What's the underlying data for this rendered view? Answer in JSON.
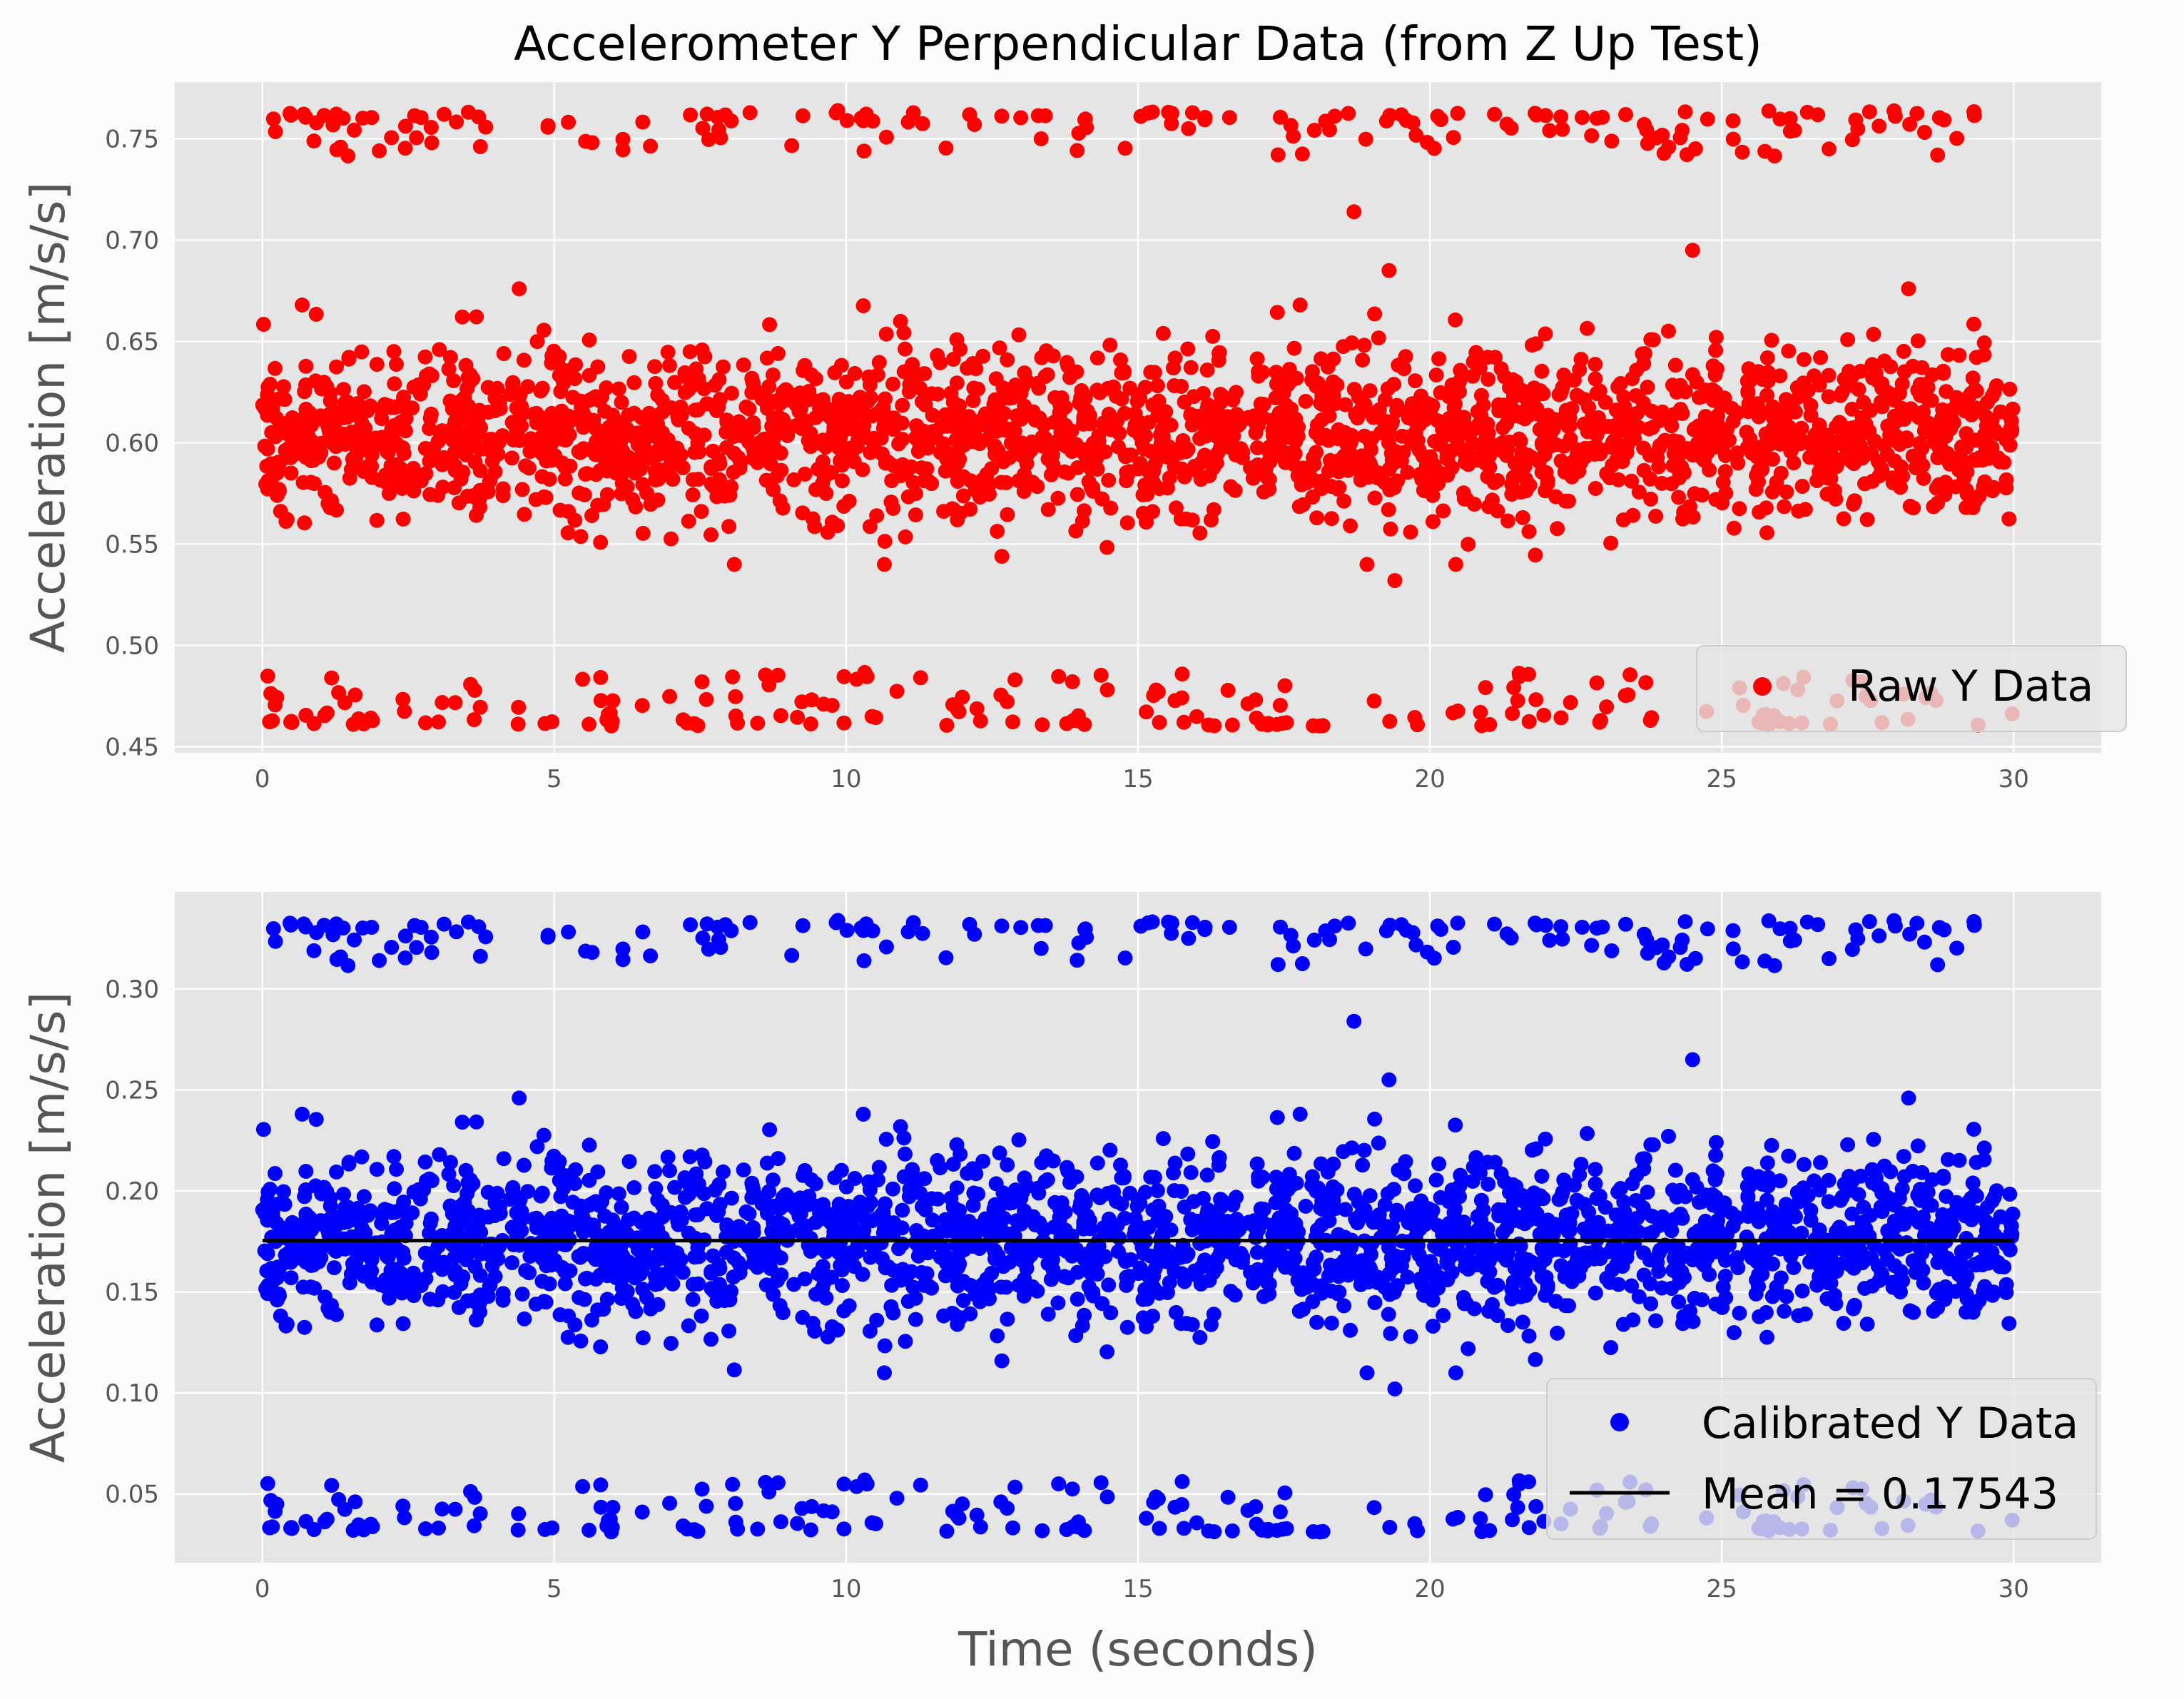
{
  "chart_data": [
    {
      "type": "scatter",
      "title": "Accelerometer Y Perpendicular Data (from Z Up Test)",
      "xlabel": "",
      "ylabel": "Acceleration [m/s/s]",
      "xlim": [
        -1.5,
        31.5
      ],
      "ylim": [
        0.447,
        0.778
      ],
      "x_ticks": [
        "0",
        "5",
        "10",
        "15",
        "20",
        "25",
        "30"
      ],
      "x_tick_values": [
        0,
        5,
        10,
        15,
        20,
        25,
        30
      ],
      "y_ticks": [
        "0.45",
        "0.50",
        "0.55",
        "0.60",
        "0.65",
        "0.70",
        "0.75"
      ],
      "y_tick_values": [
        0.45,
        0.5,
        0.55,
        0.6,
        0.65,
        0.7,
        0.75
      ],
      "grid": true,
      "legend_position": "lower-right",
      "series": [
        {
          "name": "Raw Y Data",
          "color": "#ff0000",
          "marker": "circle",
          "x_range": [
            0,
            30
          ],
          "clusters": [
            {
              "center": 0.604,
              "spread": 0.02,
              "min": 0.532,
              "max": 0.676
            },
            {
              "center": 0.755,
              "spread": 0.01,
              "min": 0.714,
              "max": 0.764
            },
            {
              "center": 0.468,
              "spread": 0.008,
              "min": 0.46,
              "max": 0.496
            }
          ],
          "notable_points": [
            {
              "x": 19.4,
              "y": 0.532
            },
            {
              "x": 24.5,
              "y": 0.695
            },
            {
              "x": 18.7,
              "y": 0.714
            },
            {
              "x": 19.3,
              "y": 0.685
            },
            {
              "x": 4.4,
              "y": 0.676
            },
            {
              "x": 28.2,
              "y": 0.676
            }
          ]
        }
      ]
    },
    {
      "type": "scatter",
      "title": "",
      "xlabel": "Time (seconds)",
      "ylabel": "Acceleration [m/s/s]",
      "xlim": [
        -1.5,
        31.5
      ],
      "ylim": [
        0.016,
        0.348
      ],
      "x_ticks": [
        "0",
        "5",
        "10",
        "15",
        "20",
        "25",
        "30"
      ],
      "x_tick_values": [
        0,
        5,
        10,
        15,
        20,
        25,
        30
      ],
      "y_ticks": [
        "0.05",
        "0.10",
        "0.15",
        "0.20",
        "0.25",
        "0.30"
      ],
      "y_tick_values": [
        0.05,
        0.1,
        0.15,
        0.2,
        0.25,
        0.3
      ],
      "grid": true,
      "legend_position": "lower-right",
      "series": [
        {
          "name": "Calibrated Y Data",
          "color": "#0000ff",
          "marker": "circle",
          "x_range": [
            0,
            30
          ],
          "clusters": [
            {
              "center": 0.176,
              "spread": 0.02,
              "min": 0.102,
              "max": 0.246
            },
            {
              "center": 0.326,
              "spread": 0.01,
              "min": 0.284,
              "max": 0.334
            },
            {
              "center": 0.039,
              "spread": 0.008,
              "min": 0.031,
              "max": 0.066
            }
          ],
          "notable_points": [
            {
              "x": 19.4,
              "y": 0.102
            },
            {
              "x": 24.5,
              "y": 0.265
            },
            {
              "x": 18.7,
              "y": 0.284
            },
            {
              "x": 19.3,
              "y": 0.255
            },
            {
              "x": 4.4,
              "y": 0.246
            },
            {
              "x": 28.2,
              "y": 0.246
            }
          ]
        },
        {
          "name": "Mean = 0.17543",
          "type": "line",
          "color": "#000000",
          "x": [
            0,
            30
          ],
          "y": [
            0.17543,
            0.17543
          ]
        }
      ]
    }
  ]
}
